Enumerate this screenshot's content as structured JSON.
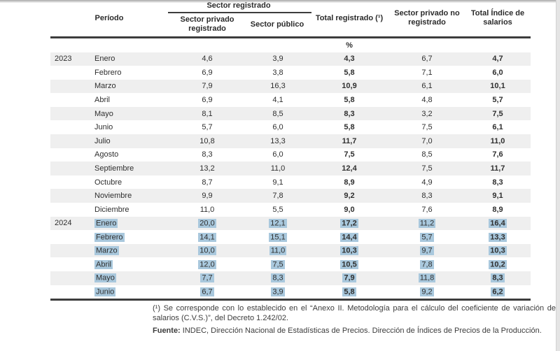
{
  "table": {
    "group_header": "Sector registrado",
    "columns": {
      "period": "Período",
      "private_registered": "Sector privado registrado",
      "public": "Sector público",
      "total_registered": "Total registrado (¹)",
      "private_unregistered": "Sector privado no registrado",
      "total_index": "Total Índice de salarios"
    },
    "unit_label": "%",
    "rows": [
      {
        "year": "2023",
        "month": "Enero",
        "private_registered": "4,6",
        "public": "3,9",
        "total_registered": "4,3",
        "private_unregistered": "6,7",
        "total_index": "4,7",
        "highlight": false
      },
      {
        "year": "",
        "month": "Febrero",
        "private_registered": "6,9",
        "public": "3,8",
        "total_registered": "5,8",
        "private_unregistered": "7,1",
        "total_index": "6,0",
        "highlight": false
      },
      {
        "year": "",
        "month": "Marzo",
        "private_registered": "7,9",
        "public": "16,3",
        "total_registered": "10,9",
        "private_unregistered": "6,1",
        "total_index": "10,1",
        "highlight": false
      },
      {
        "year": "",
        "month": "Abril",
        "private_registered": "6,9",
        "public": "4,1",
        "total_registered": "5,8",
        "private_unregistered": "4,8",
        "total_index": "5,7",
        "highlight": false
      },
      {
        "year": "",
        "month": "Mayo",
        "private_registered": "8,1",
        "public": "8,5",
        "total_registered": "8,3",
        "private_unregistered": "3,2",
        "total_index": "7,5",
        "highlight": false
      },
      {
        "year": "",
        "month": "Junio",
        "private_registered": "5,7",
        "public": "6,0",
        "total_registered": "5,8",
        "private_unregistered": "7,5",
        "total_index": "6,1",
        "highlight": false
      },
      {
        "year": "",
        "month": "Julio",
        "private_registered": "10,8",
        "public": "13,3",
        "total_registered": "11,7",
        "private_unregistered": "7,0",
        "total_index": "11,0",
        "highlight": false
      },
      {
        "year": "",
        "month": "Agosto",
        "private_registered": "8,3",
        "public": "6,0",
        "total_registered": "7,5",
        "private_unregistered": "8,5",
        "total_index": "7,6",
        "highlight": false
      },
      {
        "year": "",
        "month": "Septiembre",
        "private_registered": "13,2",
        "public": "11,0",
        "total_registered": "12,4",
        "private_unregistered": "7,5",
        "total_index": "11,7",
        "highlight": false
      },
      {
        "year": "",
        "month": "Octubre",
        "private_registered": "8,7",
        "public": "9,1",
        "total_registered": "8,9",
        "private_unregistered": "4,9",
        "total_index": "8,3",
        "highlight": false
      },
      {
        "year": "",
        "month": "Noviembre",
        "private_registered": "9,9",
        "public": "7,8",
        "total_registered": "9,2",
        "private_unregistered": "8,3",
        "total_index": "9,1",
        "highlight": false
      },
      {
        "year": "",
        "month": "Diciembre",
        "private_registered": "11,0",
        "public": "5,5",
        "total_registered": "9,0",
        "private_unregistered": "7,6",
        "total_index": "8,9",
        "highlight": false
      },
      {
        "year": "2024",
        "month": "Enero",
        "private_registered": "20,0",
        "public": "12,1",
        "total_registered": "17,2",
        "private_unregistered": "11,2",
        "total_index": "16,4",
        "highlight": true
      },
      {
        "year": "",
        "month": "Febrero",
        "private_registered": "14,1",
        "public": "15,1",
        "total_registered": "14,4",
        "private_unregistered": "5,7",
        "total_index": "13,3",
        "highlight": true
      },
      {
        "year": "",
        "month": "Marzo",
        "private_registered": "10,0",
        "public": "11,0",
        "total_registered": "10,3",
        "private_unregistered": "9,7",
        "total_index": "10,3",
        "highlight": true
      },
      {
        "year": "",
        "month": "Abril",
        "private_registered": "12,0",
        "public": "7,5",
        "total_registered": "10,5",
        "private_unregistered": "7,8",
        "total_index": "10,2",
        "highlight": true
      },
      {
        "year": "",
        "month": "Mayo",
        "private_registered": "7,7",
        "public": "8,3",
        "total_registered": "7,9",
        "private_unregistered": "11,8",
        "total_index": "8,3",
        "highlight": true
      },
      {
        "year": "",
        "month": "Junio",
        "private_registered": "6,7",
        "public": "3,9",
        "total_registered": "5,8",
        "private_unregistered": "9,2",
        "total_index": "6,2",
        "highlight": true
      }
    ]
  },
  "footnotes": {
    "note1": "(¹) Se corresponde con lo establecido en el “Anexo II. Metodología para el cálculo del coeficiente de variación de salarios (C.V.S.)”, del Decreto 1.242/02.",
    "source_label": "Fuente:",
    "source_text": " INDEC, Dirección Nacional de Estadísticas de Precios. Dirección de Índices de Precios de la Producción."
  },
  "colors": {
    "selection_highlight": "#a9c8dd",
    "row_stripe": "#efefef",
    "rule": "#3d3d3d"
  }
}
